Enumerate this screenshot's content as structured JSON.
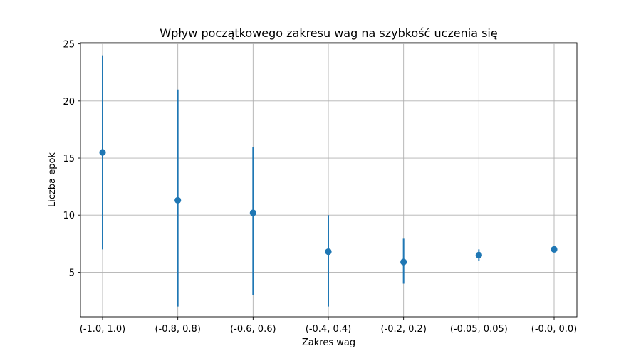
{
  "chart_data": {
    "type": "scatter",
    "title": "Wpływ początkowego zakresu wag na szybkość uczenia się",
    "xlabel": "Zakres wag",
    "ylabel": "Liczba epok",
    "categories": [
      "(-1.0, 1.0)",
      "(-0.8, 0.8)",
      "(-0.6, 0.6)",
      "(-0.4, 0.4)",
      "(-0.2, 0.2)",
      "(-0.05, 0.05)",
      "(-0.0, 0.0)"
    ],
    "series": [
      {
        "values": [
          15.5,
          11.3,
          10.2,
          6.8,
          5.9,
          6.5,
          7.0
        ],
        "min": [
          7,
          2,
          3,
          2,
          4,
          6,
          7
        ],
        "max": [
          24,
          21,
          16,
          10,
          8,
          7,
          7
        ],
        "color": "#1f77b4"
      }
    ],
    "ylim": [
      1.1,
      25.1
    ],
    "yticks": [
      5,
      10,
      15,
      20,
      25
    ],
    "grid": true,
    "legend": "none"
  }
}
